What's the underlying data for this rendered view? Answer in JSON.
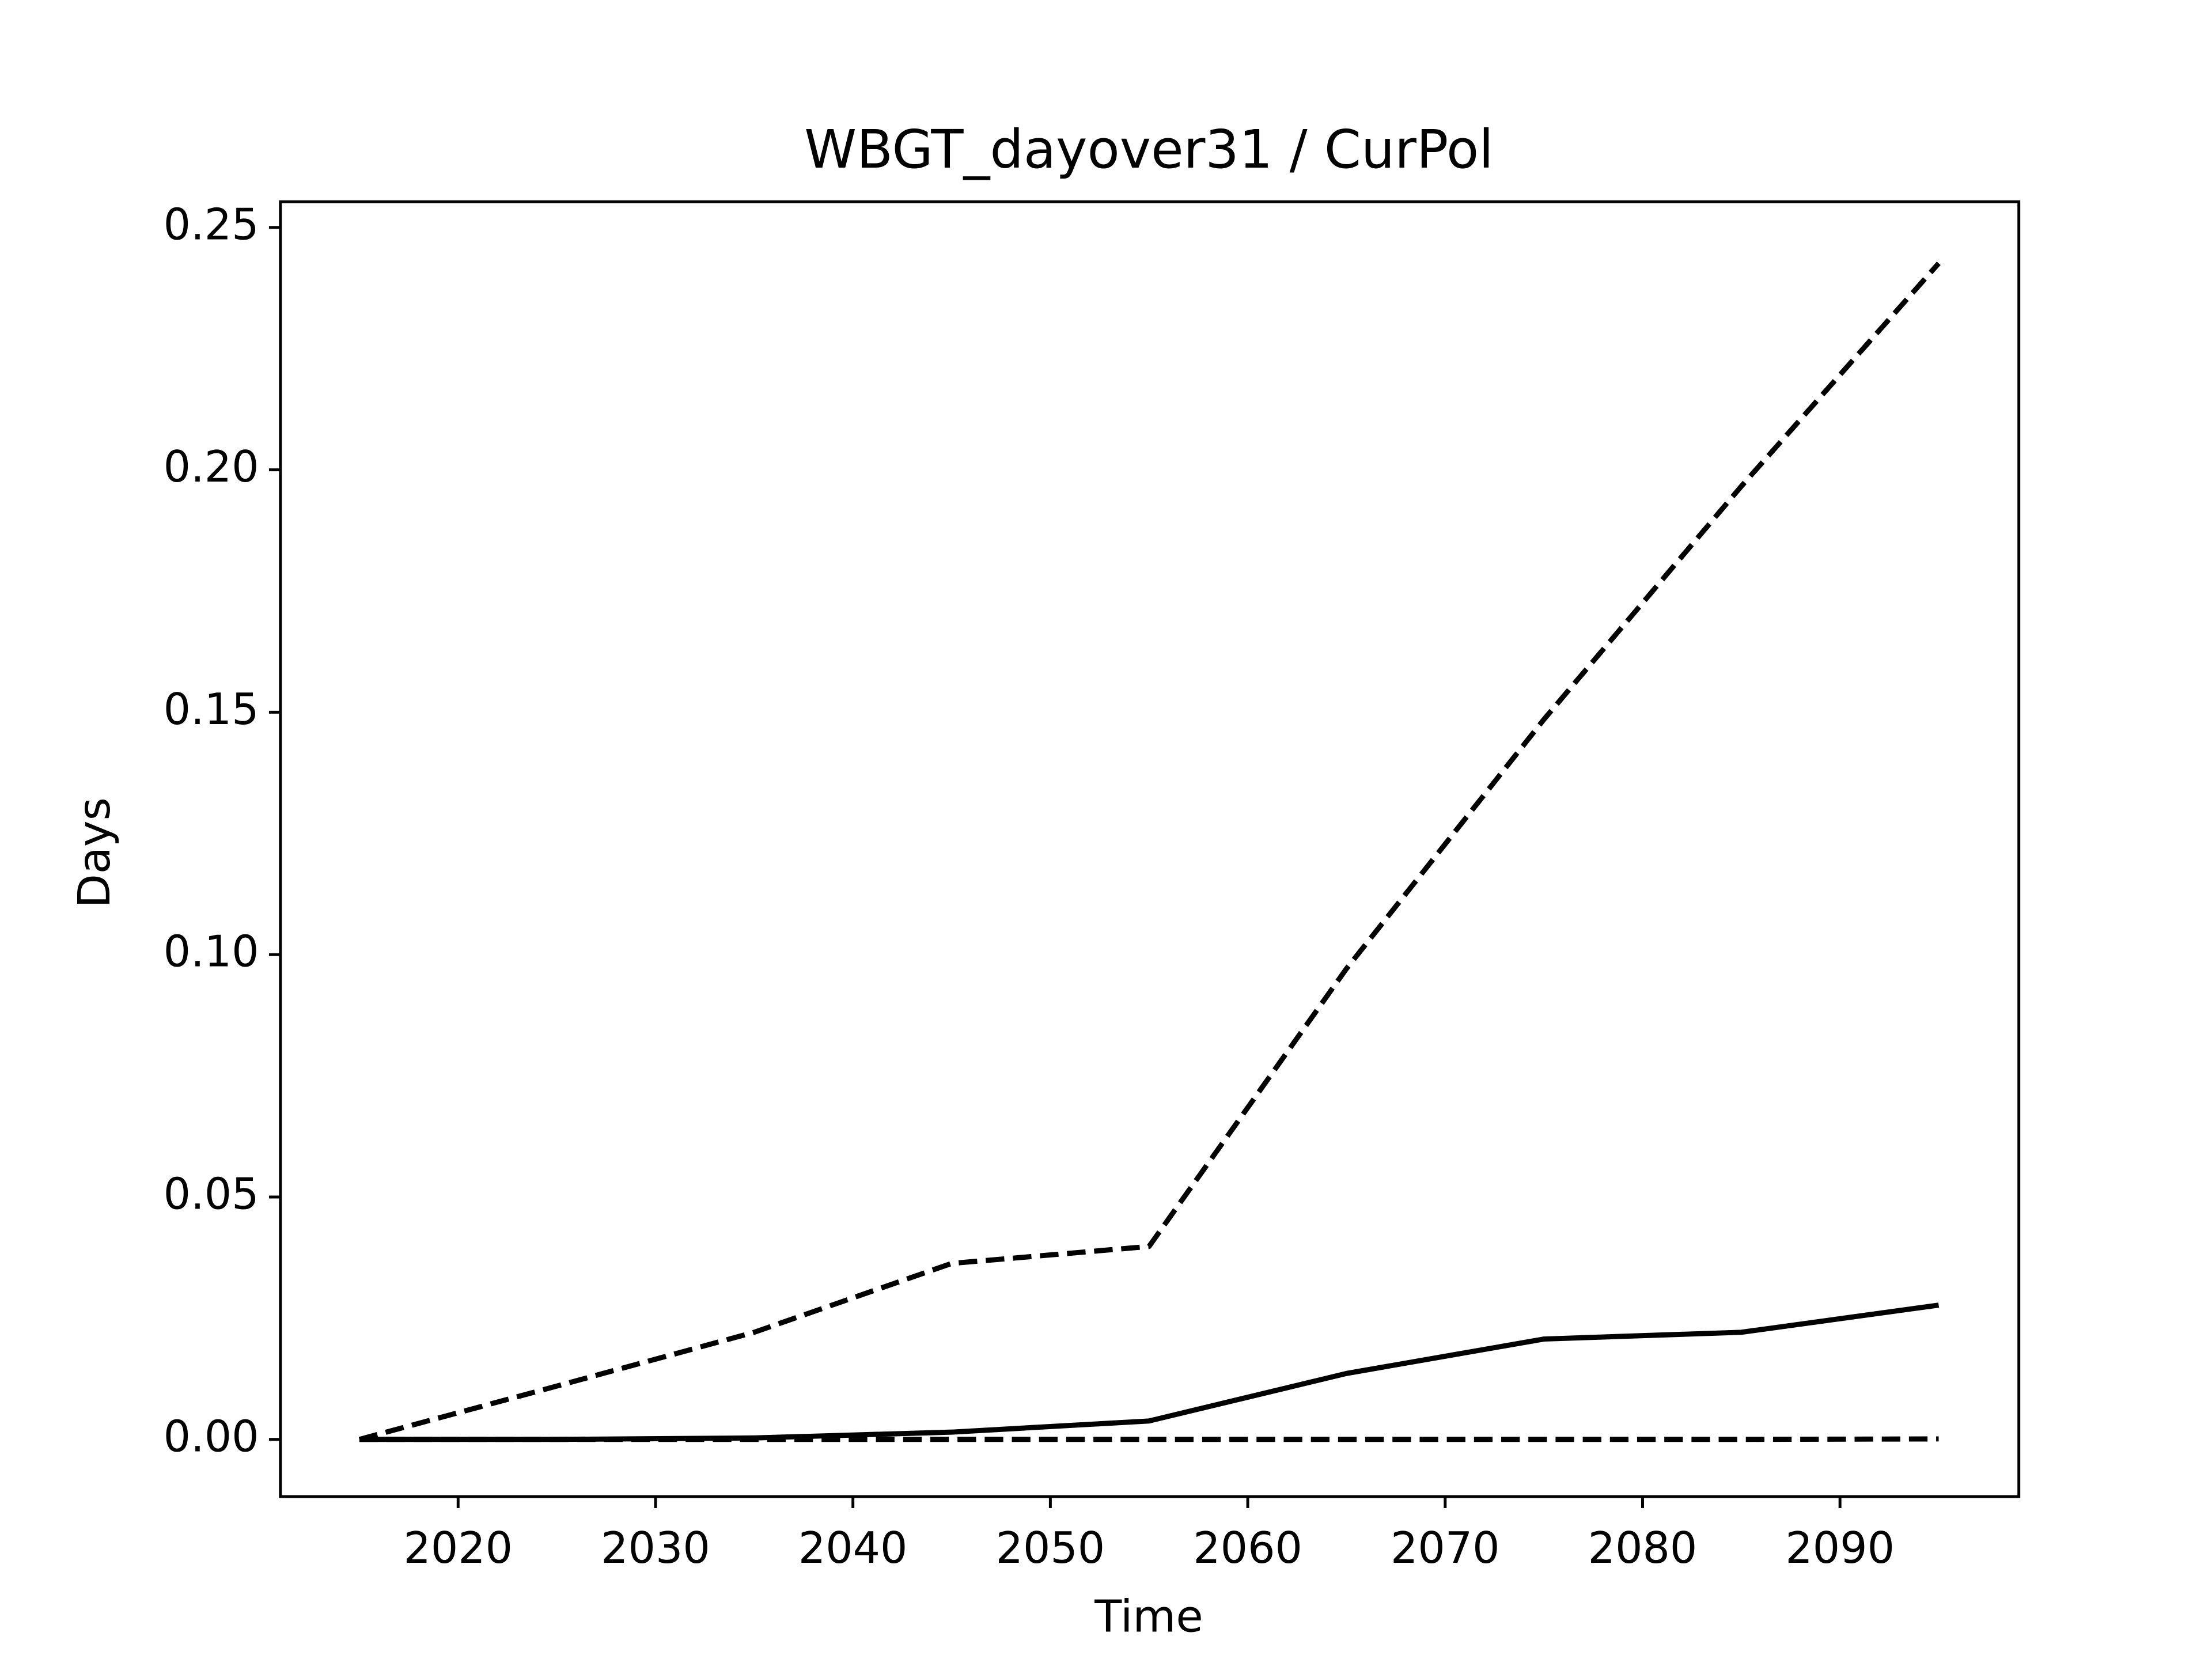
{
  "chart_data": {
    "type": "line",
    "title": "WBGT_dayover31 / CurPol",
    "xlabel": "Time",
    "ylabel": "Days",
    "x": [
      2015,
      2025,
      2035,
      2045,
      2055,
      2065,
      2075,
      2085,
      2095
    ],
    "series": [
      {
        "color": "#000000",
        "linestyle": "dashed",
        "values": [
          0,
          0.011,
          0.0221,
          0.0363,
          0.0398,
          0.0971,
          0.1485,
          0.1966,
          0.2426
        ]
      },
      {
        "color": "#000000",
        "linestyle": "solid",
        "values": [
          0,
          0,
          0.0003,
          0.0015,
          0.0038,
          0.0136,
          0.0207,
          0.0221,
          0.0277
        ]
      },
      {
        "color": "#000000",
        "linestyle": "dashed",
        "values": [
          0,
          0,
          0,
          0,
          0,
          0,
          0,
          0,
          0.0001
        ]
      }
    ],
    "xlim": [
      2011,
      2099.06
    ],
    "ylim": [
      -0.0118,
      0.2553
    ],
    "xticks": [
      2020,
      2030,
      2040,
      2050,
      2060,
      2070,
      2080,
      2090
    ],
    "yticks": [
      {
        "value": 0,
        "label": "0.00"
      },
      {
        "value": 0.05,
        "label": "0.05"
      },
      {
        "value": 0.1,
        "label": "0.10"
      },
      {
        "value": 0.15,
        "label": "0.15"
      },
      {
        "value": 0.2,
        "label": "0.20"
      },
      {
        "value": 0.25,
        "label": "0.25"
      }
    ],
    "grid": false
  }
}
